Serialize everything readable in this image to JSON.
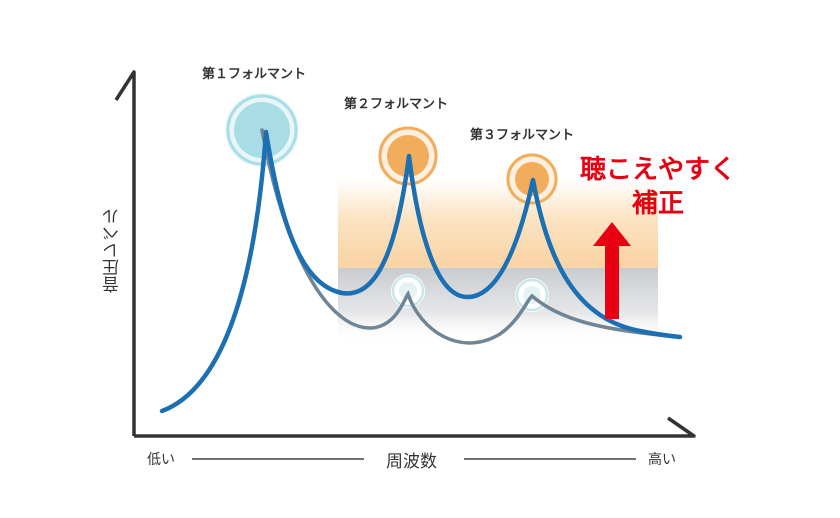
{
  "labels": {
    "formant1": "第１フォルマント",
    "formant2": "第２フォルマント",
    "formant3": "第３フォルマント",
    "y_axis": "音圧レベル",
    "x_axis": "周波数",
    "x_low": "低い",
    "x_high": "高い",
    "note_line1": "聴こえやすく",
    "note_line2": "補正"
  },
  "colors": {
    "boosted_curve": "#1b6fb3",
    "original_curve": "#6f8596",
    "formant1_fill": "#a9dde6",
    "formant_boost_fill": "#f2ad5c",
    "boost_band": "#fbd9ae",
    "original_band": "#d2d4d7",
    "arrow": "#e60012",
    "axis": "#333333"
  },
  "icons": {
    "arrow": "up-arrow-icon"
  }
}
